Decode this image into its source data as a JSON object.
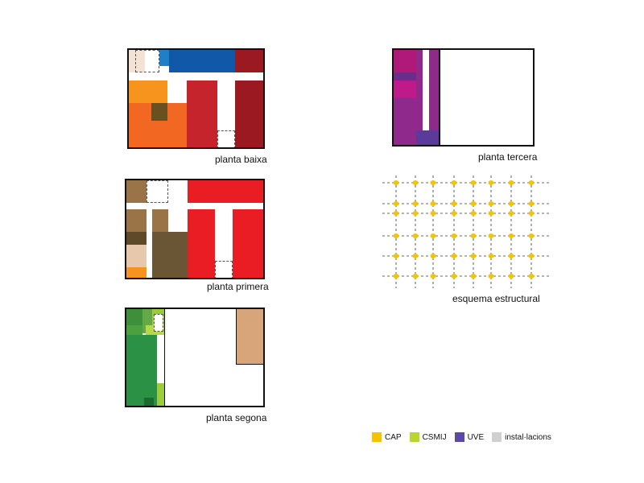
{
  "colors": {
    "cap": "#f2c500",
    "csmij": "#b9d531",
    "uve": "#5a4aa3",
    "installations": "#cfcfcf",
    "structure_node": "#f2c500"
  },
  "captions": {
    "ground": "planta baixa",
    "first": "planta primera",
    "second": "planta segona",
    "third": "planta tercera",
    "structure": "esquema estructural"
  },
  "legend": [
    {
      "label": "CAP",
      "color": "#f2c500"
    },
    {
      "label": "CSMIJ",
      "color": "#b9d531"
    },
    {
      "label": "UVE",
      "color": "#5a4aa3"
    },
    {
      "label": "instal·lacions",
      "color": "#cfcfcf"
    }
  ]
}
